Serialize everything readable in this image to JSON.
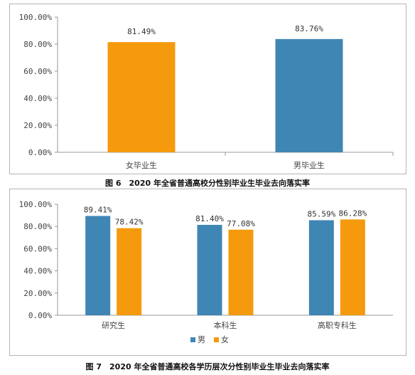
{
  "figure6": {
    "caption": "图 6　2020 年全省普通高校分性别毕业生毕业去向落实率"
  },
  "figure7": {
    "caption": "图 7　2020 年全省普通高校各学历层次分性别毕业生毕业去向落实率"
  },
  "colors": {
    "male": "#3f86b5",
    "female": "#f59a0d",
    "axis": "#999999"
  },
  "chart_data": [
    {
      "type": "bar",
      "categories": [
        "女毕业生",
        "男毕业生"
      ],
      "values": [
        81.49,
        83.76
      ],
      "data_labels": [
        "81.49%",
        "83.76%"
      ],
      "bar_colors": [
        "#f59a0d",
        "#3f86b5"
      ],
      "yticks": [
        "0.00%",
        "20.00%",
        "40.00%",
        "60.00%",
        "80.00%",
        "100.00%"
      ],
      "ylim": [
        0,
        100
      ],
      "grid": false
    },
    {
      "type": "bar",
      "categories": [
        "研究生",
        "本科生",
        "高职专科生"
      ],
      "series": [
        {
          "name": "男",
          "values": [
            89.41,
            81.4,
            85.59
          ],
          "labels": [
            "89.41%",
            "81.40%",
            "85.59%"
          ],
          "color": "#3f86b5"
        },
        {
          "name": "女",
          "values": [
            78.42,
            77.08,
            86.28
          ],
          "labels": [
            "78.42%",
            "77.08%",
            "86.28%"
          ],
          "color": "#f59a0d"
        }
      ],
      "yticks": [
        "0.00%",
        "20.00%",
        "40.00%",
        "60.00%",
        "80.00%",
        "100.00%"
      ],
      "ylim": [
        0,
        100
      ],
      "legend": "bottom",
      "grid": false
    }
  ]
}
